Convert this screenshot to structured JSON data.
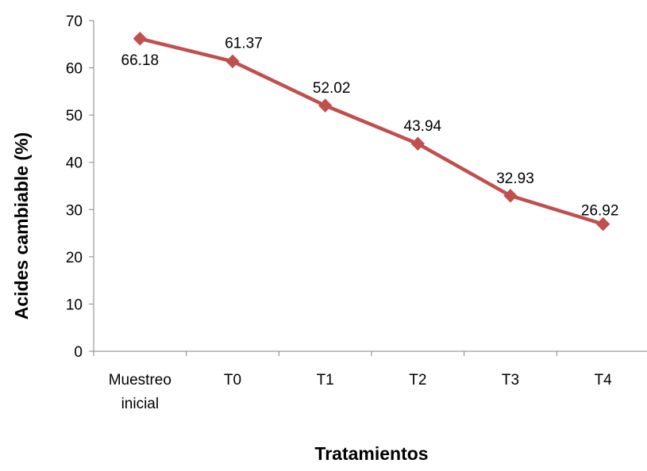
{
  "chart_data": {
    "type": "line",
    "categories": [
      [
        "Muestreo",
        "inicial"
      ],
      [
        "T0"
      ],
      [
        "T1"
      ],
      [
        "T2"
      ],
      [
        "T3"
      ],
      [
        "T4"
      ]
    ],
    "series": [
      {
        "name": "",
        "values": [
          66.18,
          61.37,
          52.02,
          43.94,
          32.93,
          26.92
        ],
        "color": "#C0504D"
      }
    ],
    "data_labels": [
      "66.18",
      "61.37",
      "52.02",
      "43.94",
      "32.93",
      "26.92"
    ],
    "xlabel": "Tratamientos",
    "ylabel": "Acides cambiable (%)",
    "ylim": [
      0,
      70
    ],
    "yticks": [
      0,
      10,
      20,
      30,
      40,
      50,
      60,
      70
    ],
    "ytick_labels": [
      "0",
      "10",
      "20",
      "30",
      "40",
      "50",
      "60",
      "70"
    ],
    "marker": "diamond",
    "grid": false,
    "legend": "none",
    "axis_color": "#868686"
  }
}
